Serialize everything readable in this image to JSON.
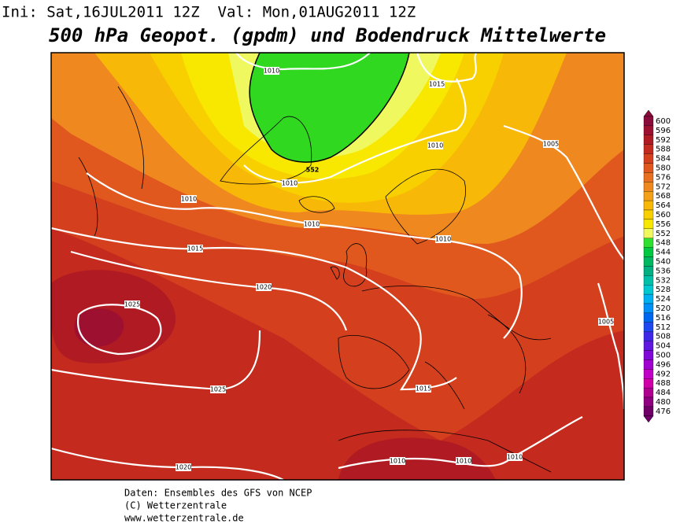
{
  "header": {
    "init": "Ini: Sat,16JUL2011 12Z  Val: Mon,01AUG2011 12Z",
    "title": "500 hPa Geopot. (gpdm) und Bodendruck Mittelwerte"
  },
  "legend": [
    {
      "value": 600,
      "color": "#8a0c3c"
    },
    {
      "value": 596,
      "color": "#9e1030"
    },
    {
      "value": 592,
      "color": "#b01a22"
    },
    {
      "value": 588,
      "color": "#c42a1e"
    },
    {
      "value": 584,
      "color": "#d4401e"
    },
    {
      "value": 580,
      "color": "#e0581e"
    },
    {
      "value": 576,
      "color": "#e87020"
    },
    {
      "value": 572,
      "color": "#f08820"
    },
    {
      "value": 568,
      "color": "#f4a018"
    },
    {
      "value": 564,
      "color": "#f8b808"
    },
    {
      "value": 560,
      "color": "#f8d000"
    },
    {
      "value": 556,
      "color": "#f8e800"
    },
    {
      "value": 552,
      "color": "#f0f860"
    },
    {
      "value": 548,
      "color": "#30e030"
    },
    {
      "value": 544,
      "color": "#00c840"
    },
    {
      "value": 540,
      "color": "#00b860"
    },
    {
      "value": 536,
      "color": "#00b080"
    },
    {
      "value": 532,
      "color": "#00c0a8"
    },
    {
      "value": 528,
      "color": "#00c8d0"
    },
    {
      "value": 524,
      "color": "#00b0f0"
    },
    {
      "value": 520,
      "color": "#0090f8"
    },
    {
      "value": 516,
      "color": "#0068f0"
    },
    {
      "value": 512,
      "color": "#2048f0"
    },
    {
      "value": 508,
      "color": "#4028e8"
    },
    {
      "value": 504,
      "color": "#6018e0"
    },
    {
      "value": 500,
      "color": "#8008d8"
    },
    {
      "value": 496,
      "color": "#a000d0"
    },
    {
      "value": 492,
      "color": "#c000c8"
    },
    {
      "value": 488,
      "color": "#d000a8"
    },
    {
      "value": 484,
      "color": "#b00090"
    },
    {
      "value": 480,
      "color": "#900080"
    },
    {
      "value": 476,
      "color": "#700068"
    }
  ],
  "isobar_labels": [
    1010,
    1015,
    1010,
    1005,
    1010,
    1010,
    1010,
    1010,
    1015,
    1020,
    1025,
    1005,
    1025,
    1015,
    1010,
    1010,
    1010,
    1020
  ],
  "geopotential_label": 552,
  "footer": [
    "Daten: Ensembles des GFS von NCEP",
    "(C) Wetterzentrale",
    "www.wetterzentrale.de"
  ]
}
